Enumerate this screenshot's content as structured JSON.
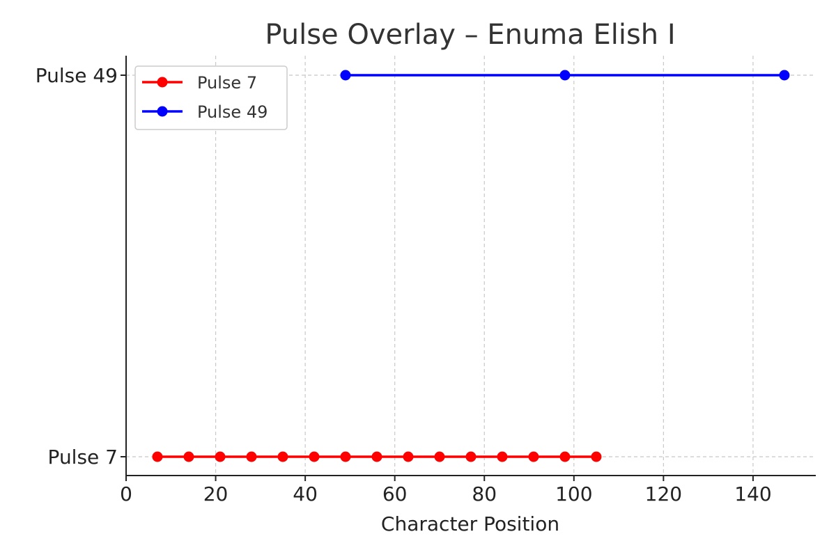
{
  "chart_data": {
    "type": "line",
    "title": "Pulse Overlay – Enuma Elish I",
    "xlabel": "Character Position",
    "ylabel": "",
    "xlim": [
      0,
      154
    ],
    "xticks": [
      0,
      20,
      40,
      60,
      80,
      100,
      120,
      140
    ],
    "categories": [
      "Pulse 7",
      "Pulse 49"
    ],
    "grid": true,
    "legend_position": "top-left",
    "series": [
      {
        "name": "Pulse 7",
        "color": "#ff0000",
        "category": "Pulse 7",
        "x": [
          7,
          14,
          21,
          28,
          35,
          42,
          49,
          56,
          63,
          70,
          77,
          84,
          91,
          98,
          105
        ]
      },
      {
        "name": "Pulse 49",
        "color": "#0000ff",
        "category": "Pulse 49",
        "x": [
          49,
          98,
          147
        ]
      }
    ]
  }
}
